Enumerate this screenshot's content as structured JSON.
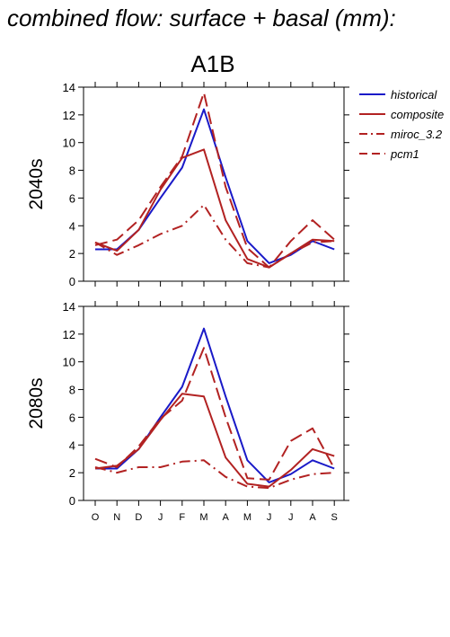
{
  "chart_data": {
    "type": "line",
    "title": "combined flow: surface + basal (mm):",
    "subtitle": "A1B",
    "categories": [
      "O",
      "N",
      "D",
      "J",
      "F",
      "M",
      "A",
      "M",
      "J",
      "J",
      "A",
      "S"
    ],
    "ylim": [
      0,
      14
    ],
    "yticks": [
      0,
      2,
      4,
      6,
      8,
      10,
      12,
      14
    ],
    "legend_position": "right",
    "legend": [
      {
        "name": "historical",
        "color": "#1a1ac8",
        "dash": "solid"
      },
      {
        "name": "composite",
        "color": "#b22222",
        "dash": "solid"
      },
      {
        "name": "miroc_3.2",
        "color": "#b22222",
        "dash": "dashdot"
      },
      {
        "name": "pcm1",
        "color": "#b22222",
        "dash": "dashed"
      }
    ],
    "panels": [
      {
        "label": "2040s",
        "series": [
          {
            "name": "historical",
            "values": [
              2.3,
              2.3,
              3.7,
              6.0,
              8.2,
              12.4,
              7.5,
              2.9,
              1.3,
              1.9,
              2.9,
              2.3
            ]
          },
          {
            "name": "composite",
            "values": [
              2.8,
              2.2,
              3.7,
              6.6,
              8.9,
              9.5,
              4.4,
              1.6,
              1.0,
              2.0,
              3.0,
              2.9
            ]
          },
          {
            "name": "miroc_3.2",
            "values": [
              2.8,
              1.9,
              2.6,
              3.4,
              4.0,
              5.5,
              3.0,
              1.3,
              1.0,
              2.0,
              2.8,
              2.9
            ]
          },
          {
            "name": "pcm1",
            "values": [
              2.6,
              3.0,
              4.4,
              6.8,
              9.0,
              13.6,
              6.8,
              2.4,
              1.0,
              2.9,
              4.4,
              3.0
            ]
          }
        ]
      },
      {
        "label": "2080s",
        "series": [
          {
            "name": "historical",
            "values": [
              2.3,
              2.3,
              3.7,
              6.0,
              8.2,
              12.4,
              7.5,
              2.9,
              1.3,
              1.9,
              2.9,
              2.3
            ]
          },
          {
            "name": "composite",
            "values": [
              2.3,
              2.5,
              3.7,
              5.8,
              7.7,
              7.5,
              3.1,
              1.2,
              1.0,
              2.2,
              3.7,
              3.2
            ]
          },
          {
            "name": "miroc_3.2",
            "values": [
              2.4,
              2.0,
              2.4,
              2.4,
              2.8,
              2.9,
              1.7,
              1.0,
              0.9,
              1.5,
              1.9,
              2.0
            ]
          },
          {
            "name": "pcm1",
            "values": [
              3.0,
              2.4,
              3.9,
              5.9,
              7.2,
              11.0,
              6.0,
              1.6,
              1.5,
              4.3,
              5.2,
              2.3
            ]
          }
        ]
      }
    ]
  }
}
